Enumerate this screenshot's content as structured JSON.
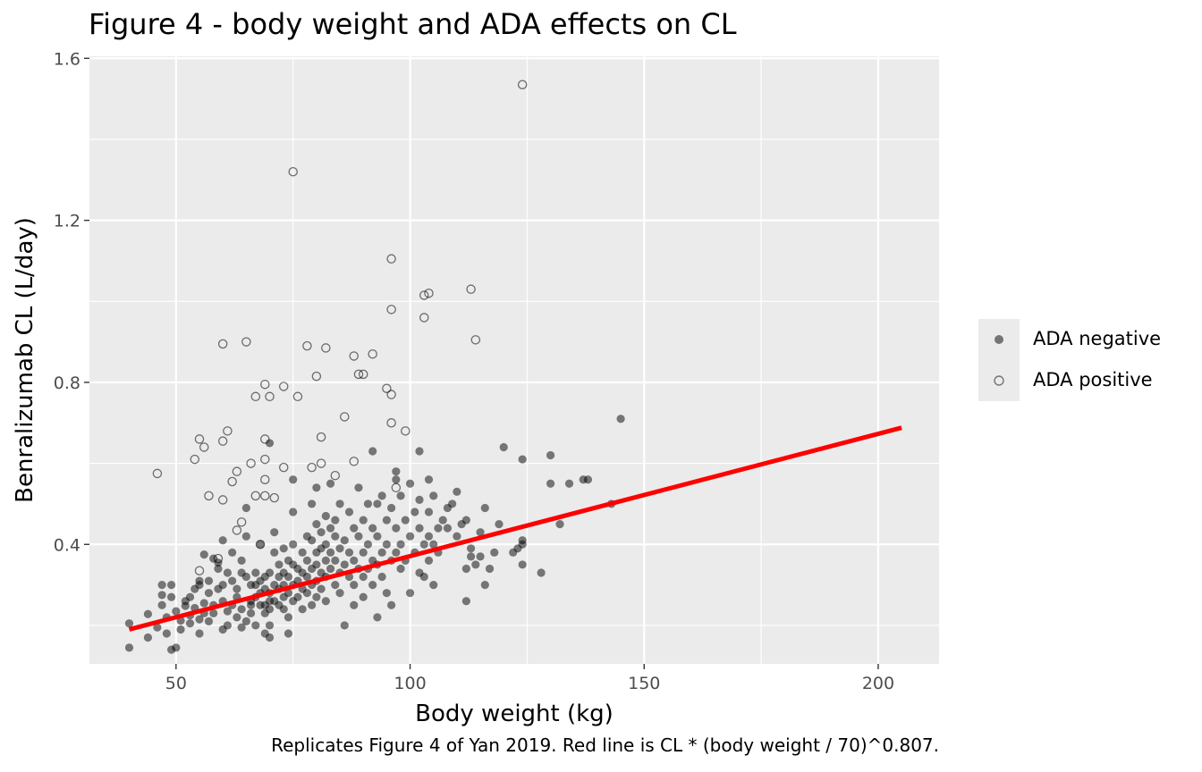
{
  "title": "Figure 4 - body weight and ADA effects on CL",
  "caption": "Replicates Figure 4 of Yan 2019. Red line is CL * (body weight / 70)^0.807.",
  "chart_data": {
    "type": "scatter",
    "title": "Figure 4 - body weight and ADA effects on CL",
    "xlabel": "Body weight (kg)",
    "ylabel": "Benralizumab CL (L/day)",
    "xlim": [
      31.5,
      213
    ],
    "ylim": [
      0.105,
      1.605
    ],
    "x_ticks": [
      50,
      100,
      150,
      200
    ],
    "y_ticks": [
      0.4,
      0.8,
      1.2,
      1.6
    ],
    "x_tick_labels": [
      "50",
      "100",
      "150",
      "200"
    ],
    "y_tick_labels": [
      "0.4",
      "0.8",
      "1.2",
      "1.6"
    ],
    "grid": true,
    "legend_position": "right",
    "colors": {
      "panel": "#ebebeb",
      "grid": "#ffffff",
      "point": "#000000",
      "line": "#ff0000"
    },
    "series": [
      {
        "name": "ADA negative",
        "marker": "filled-circle",
        "points": [
          [
            40,
            0.145
          ],
          [
            40,
            0.205
          ],
          [
            44,
            0.17
          ],
          [
            44,
            0.228
          ],
          [
            46,
            0.195
          ],
          [
            47,
            0.3
          ],
          [
            47,
            0.275
          ],
          [
            47,
            0.25
          ],
          [
            48,
            0.22
          ],
          [
            48,
            0.18
          ],
          [
            49,
            0.3
          ],
          [
            49,
            0.27
          ],
          [
            49,
            0.14
          ],
          [
            50,
            0.145
          ],
          [
            50,
            0.235
          ],
          [
            51,
            0.212
          ],
          [
            51,
            0.19
          ],
          [
            52,
            0.26
          ],
          [
            52,
            0.248
          ],
          [
            53,
            0.225
          ],
          [
            53,
            0.205
          ],
          [
            53,
            0.27
          ],
          [
            54,
            0.29
          ],
          [
            54,
            0.243
          ],
          [
            55,
            0.215
          ],
          [
            55,
            0.31
          ],
          [
            55,
            0.3
          ],
          [
            55,
            0.18
          ],
          [
            56,
            0.375
          ],
          [
            56,
            0.255
          ],
          [
            56,
            0.23
          ],
          [
            57,
            0.31
          ],
          [
            57,
            0.28
          ],
          [
            57,
            0.21
          ],
          [
            58,
            0.365
          ],
          [
            58,
            0.25
          ],
          [
            58,
            0.23
          ],
          [
            59,
            0.355
          ],
          [
            59,
            0.34
          ],
          [
            59,
            0.29
          ],
          [
            60,
            0.41
          ],
          [
            60,
            0.3
          ],
          [
            60,
            0.26
          ],
          [
            60,
            0.19
          ],
          [
            61,
            0.33
          ],
          [
            61,
            0.235
          ],
          [
            61,
            0.2
          ],
          [
            62,
            0.38
          ],
          [
            62,
            0.31
          ],
          [
            62,
            0.25
          ],
          [
            63,
            0.29
          ],
          [
            63,
            0.27
          ],
          [
            63,
            0.22
          ],
          [
            64,
            0.36
          ],
          [
            64,
            0.33
          ],
          [
            64,
            0.24
          ],
          [
            64,
            0.195
          ],
          [
            65,
            0.32
          ],
          [
            65,
            0.42
          ],
          [
            65,
            0.49
          ],
          [
            65,
            0.21
          ],
          [
            66,
            0.3
          ],
          [
            66,
            0.26
          ],
          [
            66,
            0.25
          ],
          [
            66,
            0.23
          ],
          [
            67,
            0.33
          ],
          [
            67,
            0.3
          ],
          [
            67,
            0.27
          ],
          [
            67,
            0.2
          ],
          [
            68,
            0.4
          ],
          [
            68,
            0.31
          ],
          [
            68,
            0.28
          ],
          [
            68,
            0.25
          ],
          [
            69,
            0.32
          ],
          [
            69,
            0.29
          ],
          [
            69,
            0.25
          ],
          [
            69,
            0.23
          ],
          [
            69,
            0.18
          ],
          [
            70,
            0.33
          ],
          [
            70,
            0.28
          ],
          [
            70,
            0.26
          ],
          [
            70,
            0.24
          ],
          [
            70,
            0.2
          ],
          [
            70,
            0.17
          ],
          [
            70,
            0.65
          ],
          [
            71,
            0.43
          ],
          [
            71,
            0.38
          ],
          [
            71,
            0.3
          ],
          [
            71,
            0.26
          ],
          [
            72,
            0.35
          ],
          [
            72,
            0.32
          ],
          [
            72,
            0.29
          ],
          [
            72,
            0.25
          ],
          [
            73,
            0.39
          ],
          [
            73,
            0.33
          ],
          [
            73,
            0.3
          ],
          [
            73,
            0.27
          ],
          [
            73,
            0.24
          ],
          [
            74,
            0.18
          ],
          [
            74,
            0.36
          ],
          [
            74,
            0.32
          ],
          [
            74,
            0.28
          ],
          [
            74,
            0.22
          ],
          [
            75,
            0.56
          ],
          [
            75,
            0.48
          ],
          [
            75,
            0.4
          ],
          [
            75,
            0.35
          ],
          [
            75,
            0.3
          ],
          [
            75,
            0.26
          ],
          [
            76,
            0.34
          ],
          [
            76,
            0.31
          ],
          [
            76,
            0.27
          ],
          [
            77,
            0.38
          ],
          [
            77,
            0.33
          ],
          [
            77,
            0.29
          ],
          [
            77,
            0.24
          ],
          [
            78,
            0.42
          ],
          [
            78,
            0.36
          ],
          [
            78,
            0.32
          ],
          [
            78,
            0.28
          ],
          [
            79,
            0.5
          ],
          [
            79,
            0.41
          ],
          [
            79,
            0.34
          ],
          [
            79,
            0.3
          ],
          [
            79,
            0.25
          ],
          [
            80,
            0.54
          ],
          [
            80,
            0.45
          ],
          [
            80,
            0.38
          ],
          [
            80,
            0.35
          ],
          [
            80,
            0.31
          ],
          [
            80,
            0.27
          ],
          [
            81,
            0.43
          ],
          [
            81,
            0.39
          ],
          [
            81,
            0.33
          ],
          [
            81,
            0.29
          ],
          [
            82,
            0.47
          ],
          [
            82,
            0.4
          ],
          [
            82,
            0.36
          ],
          [
            82,
            0.32
          ],
          [
            82,
            0.26
          ],
          [
            83,
            0.55
          ],
          [
            83,
            0.44
          ],
          [
            83,
            0.38
          ],
          [
            83,
            0.34
          ],
          [
            84,
            0.46
          ],
          [
            84,
            0.42
          ],
          [
            84,
            0.36
          ],
          [
            84,
            0.3
          ],
          [
            85,
            0.5
          ],
          [
            85,
            0.39
          ],
          [
            85,
            0.33
          ],
          [
            85,
            0.28
          ],
          [
            86,
            0.41
          ],
          [
            86,
            0.35
          ],
          [
            86,
            0.2
          ],
          [
            87,
            0.48
          ],
          [
            87,
            0.38
          ],
          [
            87,
            0.32
          ],
          [
            88,
            0.44
          ],
          [
            88,
            0.36
          ],
          [
            88,
            0.3
          ],
          [
            88,
            0.25
          ],
          [
            89,
            0.54
          ],
          [
            89,
            0.42
          ],
          [
            89,
            0.34
          ],
          [
            90,
            0.46
          ],
          [
            90,
            0.38
          ],
          [
            90,
            0.32
          ],
          [
            90,
            0.27
          ],
          [
            91,
            0.5
          ],
          [
            91,
            0.4
          ],
          [
            91,
            0.34
          ],
          [
            92,
            0.63
          ],
          [
            92,
            0.44
          ],
          [
            92,
            0.36
          ],
          [
            92,
            0.3
          ],
          [
            93,
            0.5
          ],
          [
            93,
            0.42
          ],
          [
            93,
            0.35
          ],
          [
            93,
            0.22
          ],
          [
            94,
            0.52
          ],
          [
            94,
            0.38
          ],
          [
            94,
            0.32
          ],
          [
            95,
            0.46
          ],
          [
            95,
            0.4
          ],
          [
            95,
            0.28
          ],
          [
            96,
            0.49
          ],
          [
            96,
            0.36
          ],
          [
            96,
            0.25
          ],
          [
            97,
            0.58
          ],
          [
            97,
            0.56
          ],
          [
            97,
            0.44
          ],
          [
            97,
            0.38
          ],
          [
            98,
            0.52
          ],
          [
            98,
            0.4
          ],
          [
            98,
            0.34
          ],
          [
            99,
            0.46
          ],
          [
            99,
            0.36
          ],
          [
            100,
            0.55
          ],
          [
            100,
            0.42
          ],
          [
            100,
            0.28
          ],
          [
            101,
            0.48
          ],
          [
            101,
            0.38
          ],
          [
            102,
            0.63
          ],
          [
            102,
            0.51
          ],
          [
            102,
            0.44
          ],
          [
            102,
            0.33
          ],
          [
            103,
            0.4
          ],
          [
            103,
            0.32
          ],
          [
            104,
            0.56
          ],
          [
            104,
            0.48
          ],
          [
            104,
            0.42
          ],
          [
            104,
            0.36
          ],
          [
            105,
            0.52
          ],
          [
            105,
            0.4
          ],
          [
            105,
            0.3
          ],
          [
            106,
            0.44
          ],
          [
            106,
            0.38
          ],
          [
            107,
            0.46
          ],
          [
            108,
            0.49
          ],
          [
            108,
            0.44
          ],
          [
            109,
            0.5
          ],
          [
            110,
            0.53
          ],
          [
            110,
            0.42
          ],
          [
            111,
            0.45
          ],
          [
            112,
            0.46
          ],
          [
            112,
            0.34
          ],
          [
            112,
            0.26
          ],
          [
            113,
            0.39
          ],
          [
            113,
            0.37
          ],
          [
            114,
            0.35
          ],
          [
            115,
            0.43
          ],
          [
            115,
            0.37
          ],
          [
            116,
            0.49
          ],
          [
            116,
            0.3
          ],
          [
            117,
            0.34
          ],
          [
            118,
            0.38
          ],
          [
            119,
            0.45
          ],
          [
            120,
            0.64
          ],
          [
            122,
            0.38
          ],
          [
            123,
            0.39
          ],
          [
            124,
            0.4
          ],
          [
            124,
            0.35
          ],
          [
            124,
            0.41
          ],
          [
            124,
            0.61
          ],
          [
            128,
            0.33
          ],
          [
            130,
            0.62
          ],
          [
            130,
            0.55
          ],
          [
            132,
            0.45
          ],
          [
            134,
            0.55
          ],
          [
            137,
            0.56
          ],
          [
            138,
            0.56
          ],
          [
            143,
            0.5
          ],
          [
            145,
            0.71
          ]
        ]
      },
      {
        "name": "ADA positive",
        "marker": "open-circle",
        "points": [
          [
            46,
            0.575
          ],
          [
            54,
            0.61
          ],
          [
            55,
            0.66
          ],
          [
            55,
            0.335
          ],
          [
            56,
            0.64
          ],
          [
            57,
            0.52
          ],
          [
            59,
            0.365
          ],
          [
            60,
            0.51
          ],
          [
            60,
            0.895
          ],
          [
            60,
            0.655
          ],
          [
            61,
            0.68
          ],
          [
            62,
            0.555
          ],
          [
            63,
            0.58
          ],
          [
            63,
            0.435
          ],
          [
            64,
            0.455
          ],
          [
            65,
            0.9
          ],
          [
            66,
            0.6
          ],
          [
            67,
            0.765
          ],
          [
            67,
            0.52
          ],
          [
            68,
            0.4
          ],
          [
            69,
            0.61
          ],
          [
            69,
            0.795
          ],
          [
            69,
            0.66
          ],
          [
            69,
            0.56
          ],
          [
            69,
            0.52
          ],
          [
            70,
            0.765
          ],
          [
            71,
            0.515
          ],
          [
            73,
            0.79
          ],
          [
            73,
            0.59
          ],
          [
            75,
            1.32
          ],
          [
            76,
            0.765
          ],
          [
            78,
            0.89
          ],
          [
            79,
            0.59
          ],
          [
            80,
            0.815
          ],
          [
            81,
            0.665
          ],
          [
            81,
            0.6
          ],
          [
            82,
            0.885
          ],
          [
            84,
            0.57
          ],
          [
            86,
            0.715
          ],
          [
            88,
            0.865
          ],
          [
            88,
            0.605
          ],
          [
            89,
            0.82
          ],
          [
            90,
            0.82
          ],
          [
            92,
            0.87
          ],
          [
            95,
            0.785
          ],
          [
            96,
            0.98
          ],
          [
            96,
            0.77
          ],
          [
            96,
            0.7
          ],
          [
            96,
            1.105
          ],
          [
            97,
            0.54
          ],
          [
            99,
            0.68
          ],
          [
            103,
            1.015
          ],
          [
            103,
            0.96
          ],
          [
            104,
            1.02
          ],
          [
            113,
            1.03
          ],
          [
            114,
            0.905
          ],
          [
            124,
            1.535
          ]
        ]
      },
      {
        "name": "CL * (body weight / 70)^0.807",
        "marker": "line",
        "points": [
          [
            40,
            0.19
          ],
          [
            205,
            0.688
          ]
        ]
      }
    ]
  }
}
